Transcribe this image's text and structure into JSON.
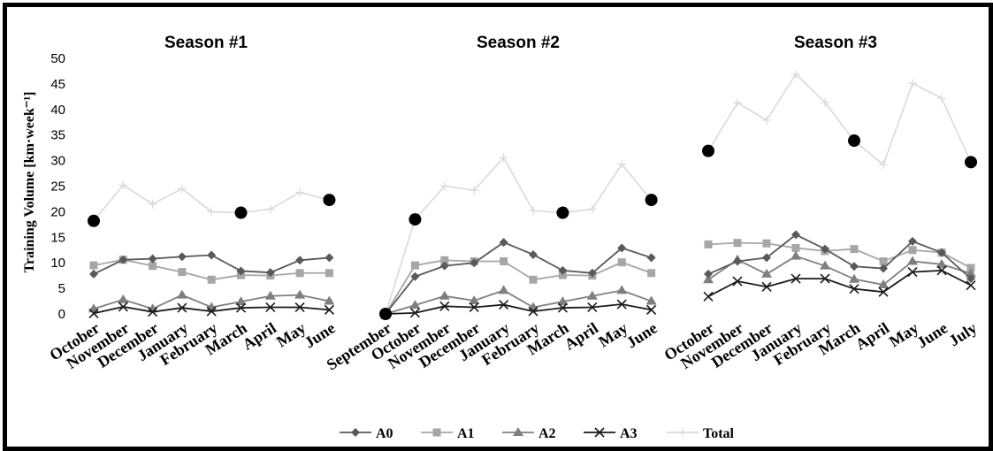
{
  "chart_data": [
    {
      "type": "line",
      "title": "Season #1",
      "ylabel": "Training Volume [km·week⁻¹]",
      "ylim": [
        0,
        50
      ],
      "yticks": [
        "0",
        "5",
        "10",
        "15",
        "20",
        "25",
        "30",
        "35",
        "40",
        "45",
        "50"
      ],
      "categories": [
        "October",
        "November",
        "December",
        "January",
        "February",
        "March",
        "April",
        "May",
        "June"
      ],
      "series": [
        {
          "name": "A0",
          "values": [
            7.8,
            10.6,
            10.8,
            11.2,
            11.5,
            8.4,
            8.1,
            10.5,
            11.0
          ]
        },
        {
          "name": "A1",
          "values": [
            9.5,
            10.6,
            9.4,
            8.2,
            6.7,
            7.6,
            7.5,
            8.0,
            8.0
          ]
        },
        {
          "name": "A2",
          "values": [
            1.0,
            2.8,
            1.0,
            3.7,
            1.3,
            2.4,
            3.5,
            3.7,
            2.5
          ]
        },
        {
          "name": "A3",
          "values": [
            0.1,
            1.4,
            0.4,
            1.2,
            0.5,
            1.2,
            1.3,
            1.3,
            0.8
          ]
        },
        {
          "name": "Total",
          "values": [
            18.2,
            25.2,
            21.5,
            24.5,
            20.0,
            19.8,
            20.5,
            23.8,
            22.3
          ]
        }
      ],
      "markers": [
        {
          "x": "October",
          "y": 18.2
        },
        {
          "x": "March",
          "y": 19.8
        },
        {
          "x": "June",
          "y": 22.3
        }
      ]
    },
    {
      "type": "line",
      "title": "Season #2",
      "ylim": [
        0,
        50
      ],
      "categories": [
        "September",
        "October",
        "November",
        "December",
        "January",
        "February",
        "March",
        "April",
        "May",
        "June"
      ],
      "series": [
        {
          "name": "A0",
          "values": [
            0,
            7.3,
            9.4,
            10.0,
            14.0,
            11.6,
            8.5,
            8.0,
            12.9,
            11.0
          ]
        },
        {
          "name": "A1",
          "values": [
            0,
            9.5,
            10.5,
            10.3,
            10.3,
            6.7,
            7.6,
            7.5,
            10.1,
            8.0
          ]
        },
        {
          "name": "A2",
          "values": [
            0,
            1.7,
            3.5,
            2.6,
            4.6,
            1.3,
            2.4,
            3.5,
            4.6,
            2.5
          ]
        },
        {
          "name": "A3",
          "values": [
            0,
            0.2,
            1.5,
            1.3,
            1.8,
            0.5,
            1.2,
            1.3,
            1.9,
            0.8
          ]
        },
        {
          "name": "Total",
          "values": [
            0,
            18.5,
            25.0,
            24.2,
            30.6,
            20.2,
            19.8,
            20.5,
            29.3,
            22.3
          ]
        }
      ],
      "markers": [
        {
          "x": "September",
          "y": 0
        },
        {
          "x": "October",
          "y": 18.5
        },
        {
          "x": "March",
          "y": 19.8
        },
        {
          "x": "June",
          "y": 22.3
        }
      ]
    },
    {
      "type": "line",
      "title": "Season #3",
      "ylim": [
        0,
        50
      ],
      "categories": [
        "October",
        "November",
        "December",
        "January",
        "February",
        "March",
        "April",
        "May",
        "June",
        "July"
      ],
      "series": [
        {
          "name": "A0",
          "values": [
            7.8,
            10.3,
            11.0,
            15.5,
            12.7,
            9.3,
            8.9,
            14.2,
            12.0,
            6.9
          ]
        },
        {
          "name": "A1",
          "values": [
            13.6,
            13.9,
            13.8,
            12.9,
            12.3,
            12.7,
            10.3,
            12.5,
            12.0,
            9.0
          ]
        },
        {
          "name": "A2",
          "values": [
            6.7,
            10.6,
            7.8,
            11.3,
            9.4,
            6.8,
            5.7,
            10.3,
            9.7,
            7.9
          ]
        },
        {
          "name": "A3",
          "values": [
            3.4,
            6.4,
            5.3,
            6.9,
            6.9,
            4.9,
            4.3,
            8.2,
            8.5,
            5.6
          ]
        },
        {
          "name": "Total",
          "values": [
            31.9,
            41.3,
            37.9,
            46.9,
            41.4,
            33.9,
            29.2,
            45.1,
            42.2,
            29.7
          ]
        }
      ],
      "markers": [
        {
          "x": "October",
          "y": 31.9
        },
        {
          "x": "March",
          "y": 33.9
        },
        {
          "x": "July",
          "y": 29.7
        }
      ]
    }
  ],
  "legend": {
    "position": "bottom",
    "items": [
      {
        "name": "A0",
        "color": "#595959",
        "marker": "diamond"
      },
      {
        "name": "A1",
        "color": "#a6a6a6",
        "marker": "square"
      },
      {
        "name": "A2",
        "color": "#7f7f7f",
        "marker": "triangle"
      },
      {
        "name": "A3",
        "color": "#1a1a1a",
        "marker": "x"
      },
      {
        "name": "Total",
        "color": "#d9d9d9",
        "marker": "plus"
      }
    ]
  },
  "colors": {
    "A0": "#595959",
    "A1": "#a6a6a6",
    "A2": "#7f7f7f",
    "A3": "#1a1a1a",
    "Total": "#d9d9d9",
    "marker": "#000000"
  }
}
